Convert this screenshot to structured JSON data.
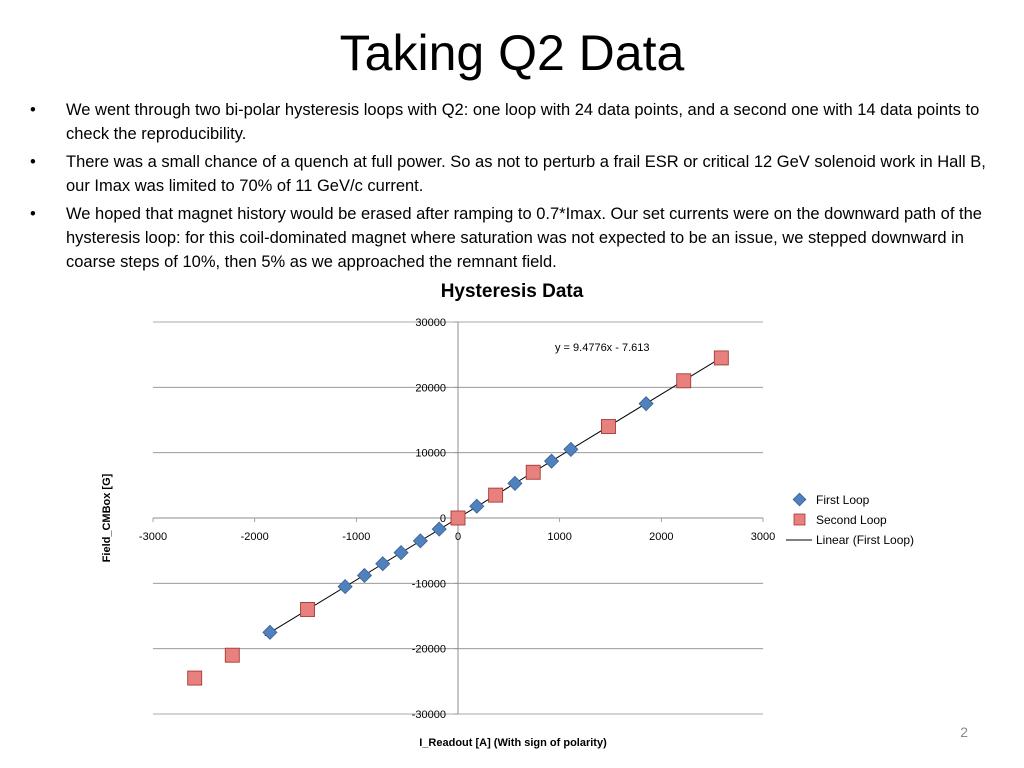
{
  "slide": {
    "title": "Taking Q2 Data",
    "bullets": [
      "We went through two bi-polar hysteresis loops with Q2: one loop with 24 data points, and a second one with 14 data points to check the reproducibility.",
      "There was a small chance of a quench at full power. So as not to perturb a frail ESR or critical 12 GeV solenoid work in Hall B, our Imax was limited to 70% of 11 GeV/c current.",
      "We hoped that magnet history would be erased after ramping to 0.7*Imax. Our set currents were on the downward path of the hysteresis loop: for this coil-dominated magnet where saturation was not expected to be an issue, we stepped downward in coarse steps of 10%, then 5%  as we approached the remnant field."
    ],
    "page_number": "2"
  },
  "chart_data": {
    "type": "scatter",
    "title": "Hysteresis Data",
    "xlabel": "I_Readout [A] (With sign of polarity)",
    "ylabel": "Field_CMBox [G]",
    "xlim": [
      -3000,
      3000
    ],
    "ylim": [
      -30000,
      30000
    ],
    "x_ticks": [
      -3000,
      -2000,
      -1000,
      0,
      1000,
      2000,
      3000
    ],
    "y_ticks": [
      -30000,
      -20000,
      -10000,
      0,
      10000,
      20000,
      30000
    ],
    "grid": "horizontal",
    "legend": "right",
    "equation": "y = 9.4776x - 7.613",
    "trendline": {
      "name": "Linear (First Loop)",
      "slope": 9.4776,
      "intercept": -7.613,
      "color": "#000000"
    },
    "series": [
      {
        "name": "First Loop",
        "marker": "diamond",
        "color": "#4f81bd",
        "x": [
          1850,
          1110,
          920,
          560,
          185,
          0,
          -185,
          -370,
          -560,
          -740,
          -920,
          -1110,
          -1850
        ],
        "y": [
          17500,
          10500,
          8700,
          5300,
          1800,
          0,
          -1700,
          -3500,
          -5300,
          -7000,
          -8800,
          -10500,
          -17500
        ]
      },
      {
        "name": "Second Loop",
        "marker": "square",
        "color": "#c0504d",
        "x": [
          2590,
          2220,
          1480,
          740,
          370,
          0,
          -1480,
          -2220,
          -2590
        ],
        "y": [
          24500,
          21000,
          14000,
          7000,
          3500,
          0,
          -14000,
          -21000,
          -24500
        ]
      }
    ]
  }
}
